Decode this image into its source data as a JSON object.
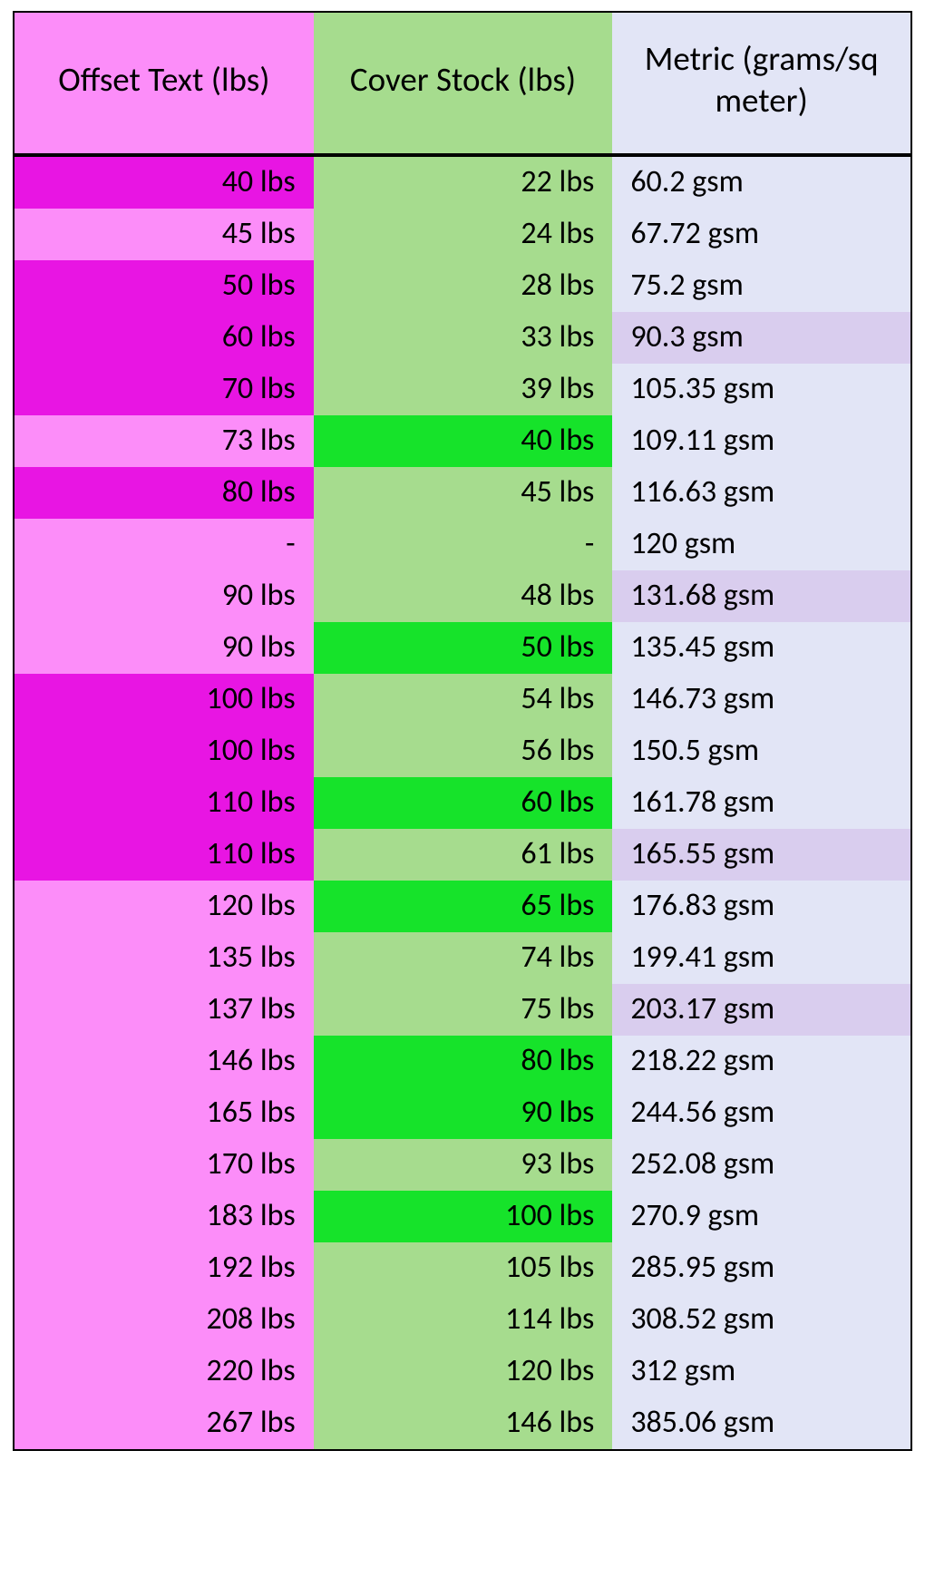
{
  "table": {
    "columns": [
      {
        "label": "Offset Text (lbs)",
        "header_bg": "#fc8df9",
        "base_bg": "#fc8df9",
        "highlight_bg": "#e815e3",
        "align": "right"
      },
      {
        "label": "Cover Stock (lbs)",
        "header_bg": "#a6dc8e",
        "base_bg": "#a6dc8e",
        "highlight_bg": "#16e32a",
        "align": "right"
      },
      {
        "label": "Metric (grams/sq meter)",
        "header_bg": "#e2e5f6",
        "base_bg": "#e2e5f6",
        "highlight_bg": "#d9cdee",
        "align": "left"
      }
    ],
    "rows": [
      {
        "cells": [
          {
            "v": "40 lbs",
            "hi": true
          },
          {
            "v": "22 lbs",
            "hi": false
          },
          {
            "v": "60.2 gsm",
            "hi": false
          }
        ]
      },
      {
        "cells": [
          {
            "v": "45 lbs",
            "hi": false
          },
          {
            "v": "24 lbs",
            "hi": false
          },
          {
            "v": "67.72 gsm",
            "hi": false
          }
        ]
      },
      {
        "cells": [
          {
            "v": "50 lbs",
            "hi": true
          },
          {
            "v": "28 lbs",
            "hi": false
          },
          {
            "v": "75.2 gsm",
            "hi": false
          }
        ]
      },
      {
        "cells": [
          {
            "v": "60 lbs",
            "hi": true
          },
          {
            "v": "33 lbs",
            "hi": false
          },
          {
            "v": "90.3 gsm",
            "hi": true
          }
        ]
      },
      {
        "cells": [
          {
            "v": "70 lbs",
            "hi": true
          },
          {
            "v": "39 lbs",
            "hi": false
          },
          {
            "v": "105.35 gsm",
            "hi": false
          }
        ]
      },
      {
        "cells": [
          {
            "v": "73 lbs",
            "hi": false
          },
          {
            "v": "40 lbs",
            "hi": true
          },
          {
            "v": "109.11 gsm",
            "hi": false
          }
        ]
      },
      {
        "cells": [
          {
            "v": "80 lbs",
            "hi": true
          },
          {
            "v": "45 lbs",
            "hi": false
          },
          {
            "v": "116.63 gsm",
            "hi": false
          }
        ]
      },
      {
        "cells": [
          {
            "v": "-",
            "hi": false
          },
          {
            "v": "-",
            "hi": false
          },
          {
            "v": "120 gsm",
            "hi": false
          }
        ]
      },
      {
        "cells": [
          {
            "v": "90 lbs",
            "hi": false
          },
          {
            "v": "48 lbs",
            "hi": false
          },
          {
            "v": "131.68 gsm",
            "hi": true
          }
        ]
      },
      {
        "cells": [
          {
            "v": "90 lbs",
            "hi": false
          },
          {
            "v": "50 lbs",
            "hi": true
          },
          {
            "v": "135.45 gsm",
            "hi": false
          }
        ]
      },
      {
        "cells": [
          {
            "v": "100 lbs",
            "hi": true
          },
          {
            "v": "54 lbs",
            "hi": false
          },
          {
            "v": "146.73 gsm",
            "hi": false
          }
        ]
      },
      {
        "cells": [
          {
            "v": "100 lbs",
            "hi": true
          },
          {
            "v": "56 lbs",
            "hi": false
          },
          {
            "v": "150.5 gsm",
            "hi": false
          }
        ]
      },
      {
        "cells": [
          {
            "v": "110 lbs",
            "hi": true
          },
          {
            "v": "60 lbs",
            "hi": true
          },
          {
            "v": "161.78 gsm",
            "hi": false
          }
        ]
      },
      {
        "cells": [
          {
            "v": "110 lbs",
            "hi": true
          },
          {
            "v": "61 lbs",
            "hi": false
          },
          {
            "v": "165.55 gsm",
            "hi": true
          }
        ]
      },
      {
        "cells": [
          {
            "v": "120 lbs",
            "hi": false
          },
          {
            "v": "65 lbs",
            "hi": true
          },
          {
            "v": "176.83 gsm",
            "hi": false
          }
        ]
      },
      {
        "cells": [
          {
            "v": "135 lbs",
            "hi": false
          },
          {
            "v": "74 lbs",
            "hi": false
          },
          {
            "v": "199.41 gsm",
            "hi": false
          }
        ]
      },
      {
        "cells": [
          {
            "v": "137 lbs",
            "hi": false
          },
          {
            "v": "75 lbs",
            "hi": false
          },
          {
            "v": "203.17 gsm",
            "hi": true
          }
        ]
      },
      {
        "cells": [
          {
            "v": "146 lbs",
            "hi": false
          },
          {
            "v": "80 lbs",
            "hi": true
          },
          {
            "v": "218.22 gsm",
            "hi": false
          }
        ]
      },
      {
        "cells": [
          {
            "v": "165 lbs",
            "hi": false
          },
          {
            "v": "90 lbs",
            "hi": true
          },
          {
            "v": "244.56 gsm",
            "hi": false
          }
        ]
      },
      {
        "cells": [
          {
            "v": "170 lbs",
            "hi": false
          },
          {
            "v": "93 lbs",
            "hi": false
          },
          {
            "v": "252.08 gsm",
            "hi": false
          }
        ]
      },
      {
        "cells": [
          {
            "v": "183 lbs",
            "hi": false
          },
          {
            "v": "100 lbs",
            "hi": true
          },
          {
            "v": "270.9 gsm",
            "hi": false
          }
        ]
      },
      {
        "cells": [
          {
            "v": "192 lbs",
            "hi": false
          },
          {
            "v": "105 lbs",
            "hi": false
          },
          {
            "v": "285.95 gsm",
            "hi": false
          }
        ]
      },
      {
        "cells": [
          {
            "v": "208 lbs",
            "hi": false
          },
          {
            "v": "114 lbs",
            "hi": false
          },
          {
            "v": "308.52 gsm",
            "hi": false
          }
        ]
      },
      {
        "cells": [
          {
            "v": "220 lbs",
            "hi": false
          },
          {
            "v": "120 lbs",
            "hi": false
          },
          {
            "v": "312 gsm",
            "hi": false
          }
        ]
      },
      {
        "cells": [
          {
            "v": "267 lbs",
            "hi": false
          },
          {
            "v": "146 lbs",
            "hi": false
          },
          {
            "v": "385.06 gsm",
            "hi": false
          }
        ]
      }
    ],
    "style": {
      "border_color": "#000000",
      "header_font_size_pt": 28,
      "body_font_size_pt": 26,
      "font_family": "Calibri"
    }
  }
}
